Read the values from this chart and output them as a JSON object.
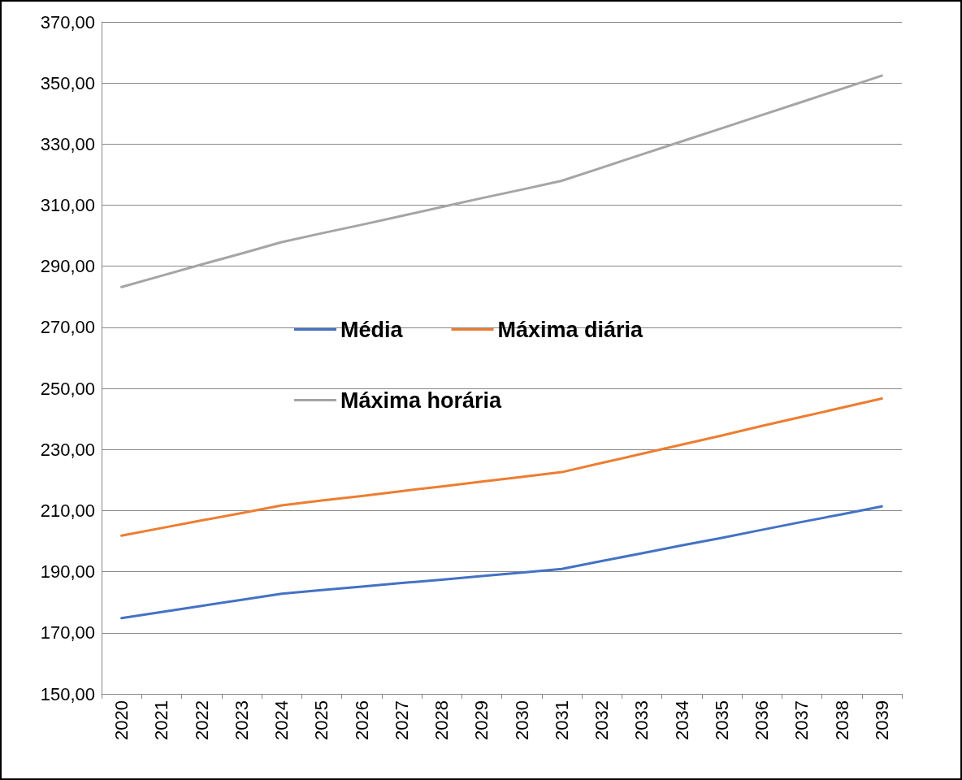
{
  "chart_data": {
    "type": "line",
    "categories": [
      "2020",
      "2021",
      "2022",
      "2023",
      "2024",
      "2025",
      "2026",
      "2027",
      "2028",
      "2029",
      "2030",
      "2031",
      "2032",
      "2033",
      "2034",
      "2035",
      "2036",
      "2037",
      "2038",
      "2039"
    ],
    "series": [
      {
        "name": "Média",
        "color": "#4472c4",
        "values": [
          174.8,
          176.8,
          178.8,
          180.8,
          182.8,
          184.0,
          185.1,
          186.3,
          187.4,
          188.6,
          189.7,
          190.9,
          193.5,
          196.0,
          198.6,
          201.1,
          203.7,
          206.3,
          208.8,
          211.4
        ]
      },
      {
        "name": "Máxima diária",
        "color": "#ed7d31",
        "values": [
          201.8,
          204.3,
          206.8,
          209.2,
          211.7,
          213.3,
          214.8,
          216.4,
          217.9,
          219.5,
          221.0,
          222.6,
          225.6,
          228.6,
          231.6,
          234.6,
          237.7,
          240.7,
          243.7,
          246.7
        ]
      },
      {
        "name": "Máxima horária",
        "color": "#a5a5a5",
        "values": [
          283.2,
          286.9,
          290.6,
          294.2,
          297.9,
          300.8,
          303.6,
          306.5,
          309.4,
          312.3,
          315.1,
          318.0,
          322.3,
          326.6,
          330.9,
          335.2,
          339.5,
          343.8,
          348.1,
          352.4
        ]
      }
    ],
    "ylim": [
      150,
      370
    ],
    "yticks": [
      {
        "value": 150,
        "label": "150,00"
      },
      {
        "value": 170,
        "label": "170,00"
      },
      {
        "value": 190,
        "label": "190,00"
      },
      {
        "value": 210,
        "label": "210,00"
      },
      {
        "value": 230,
        "label": "230,00"
      },
      {
        "value": 250,
        "label": "250,00"
      },
      {
        "value": 270,
        "label": "270,00"
      },
      {
        "value": 290,
        "label": "290,00"
      },
      {
        "value": 310,
        "label": "310,00"
      },
      {
        "value": 330,
        "label": "330,00"
      },
      {
        "value": 350,
        "label": "350,00"
      },
      {
        "value": 370,
        "label": "370,00"
      }
    ],
    "grid": "y",
    "legend": "center",
    "marker": "none",
    "line_style": "solid"
  }
}
